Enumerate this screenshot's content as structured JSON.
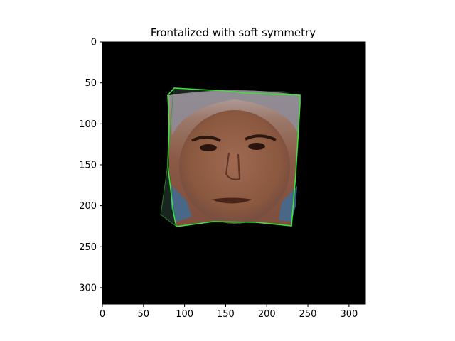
{
  "chart_data": {
    "type": "image",
    "title": "Frontalized with soft symmetry",
    "xlabel": "",
    "ylabel": "",
    "xlim": [
      0,
      320
    ],
    "ylim": [
      320,
      0
    ],
    "x_ticks": [
      0,
      50,
      100,
      150,
      200,
      250,
      300
    ],
    "y_ticks": [
      0,
      50,
      100,
      150,
      200,
      250,
      300
    ],
    "grid": false,
    "image": {
      "description": "",
      "background": "#000000",
      "outline_color": "#39e639"
    }
  }
}
